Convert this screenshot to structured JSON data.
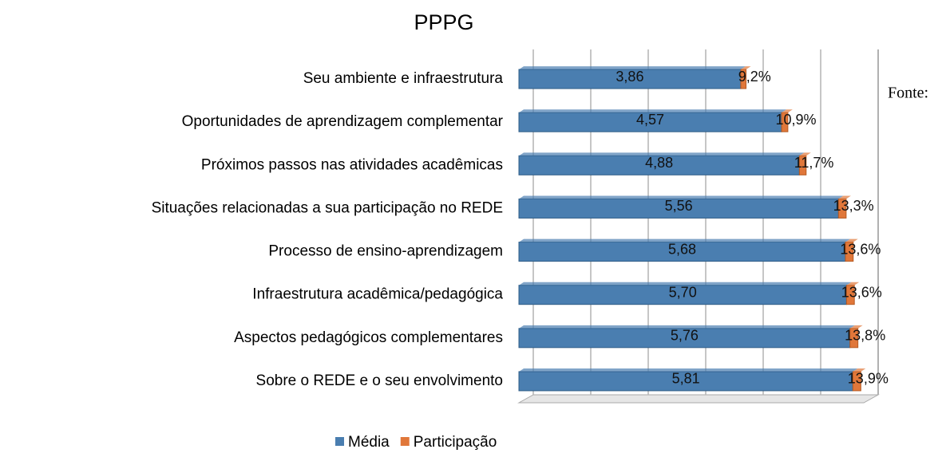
{
  "chart_data": {
    "type": "bar",
    "orientation": "horizontal",
    "stacked": true,
    "title": "PPPG",
    "annotation": "Fonte:",
    "categories": [
      "Seu ambiente e infraestrutura",
      "Oportunidades de aprendizagem complementar",
      "Próximos passos nas atividades acadêmicas",
      "Situações relacionadas a sua participação no REDE",
      "Processo de ensino-aprendizagem",
      "Infraestrutura acadêmica/pedagógica",
      "Aspectos pedagógicos complementares",
      "Sobre o REDE e o seu envolvimento"
    ],
    "series": [
      {
        "name": "Média",
        "color": "#4a7eb0",
        "values": [
          3.86,
          4.57,
          4.88,
          5.56,
          5.68,
          5.7,
          5.76,
          5.81
        ],
        "value_labels": [
          "3,86",
          "4,57",
          "4,88",
          "5,56",
          "5,68",
          "5,70",
          "5,76",
          "5,81"
        ]
      },
      {
        "name": "Participação",
        "color": "#e0773a",
        "values": [
          0.092,
          0.109,
          0.117,
          0.133,
          0.136,
          0.136,
          0.138,
          0.139
        ],
        "value_labels": [
          "9,2%",
          "10,9%",
          "11,7%",
          "13,3%",
          "13,6%",
          "13,6%",
          "13,8%",
          "13,9%"
        ]
      }
    ],
    "xlim": [
      0,
      6
    ],
    "xticks": [
      0,
      1,
      2,
      3,
      4,
      5,
      6
    ],
    "grid": true,
    "legend": "bottom"
  }
}
